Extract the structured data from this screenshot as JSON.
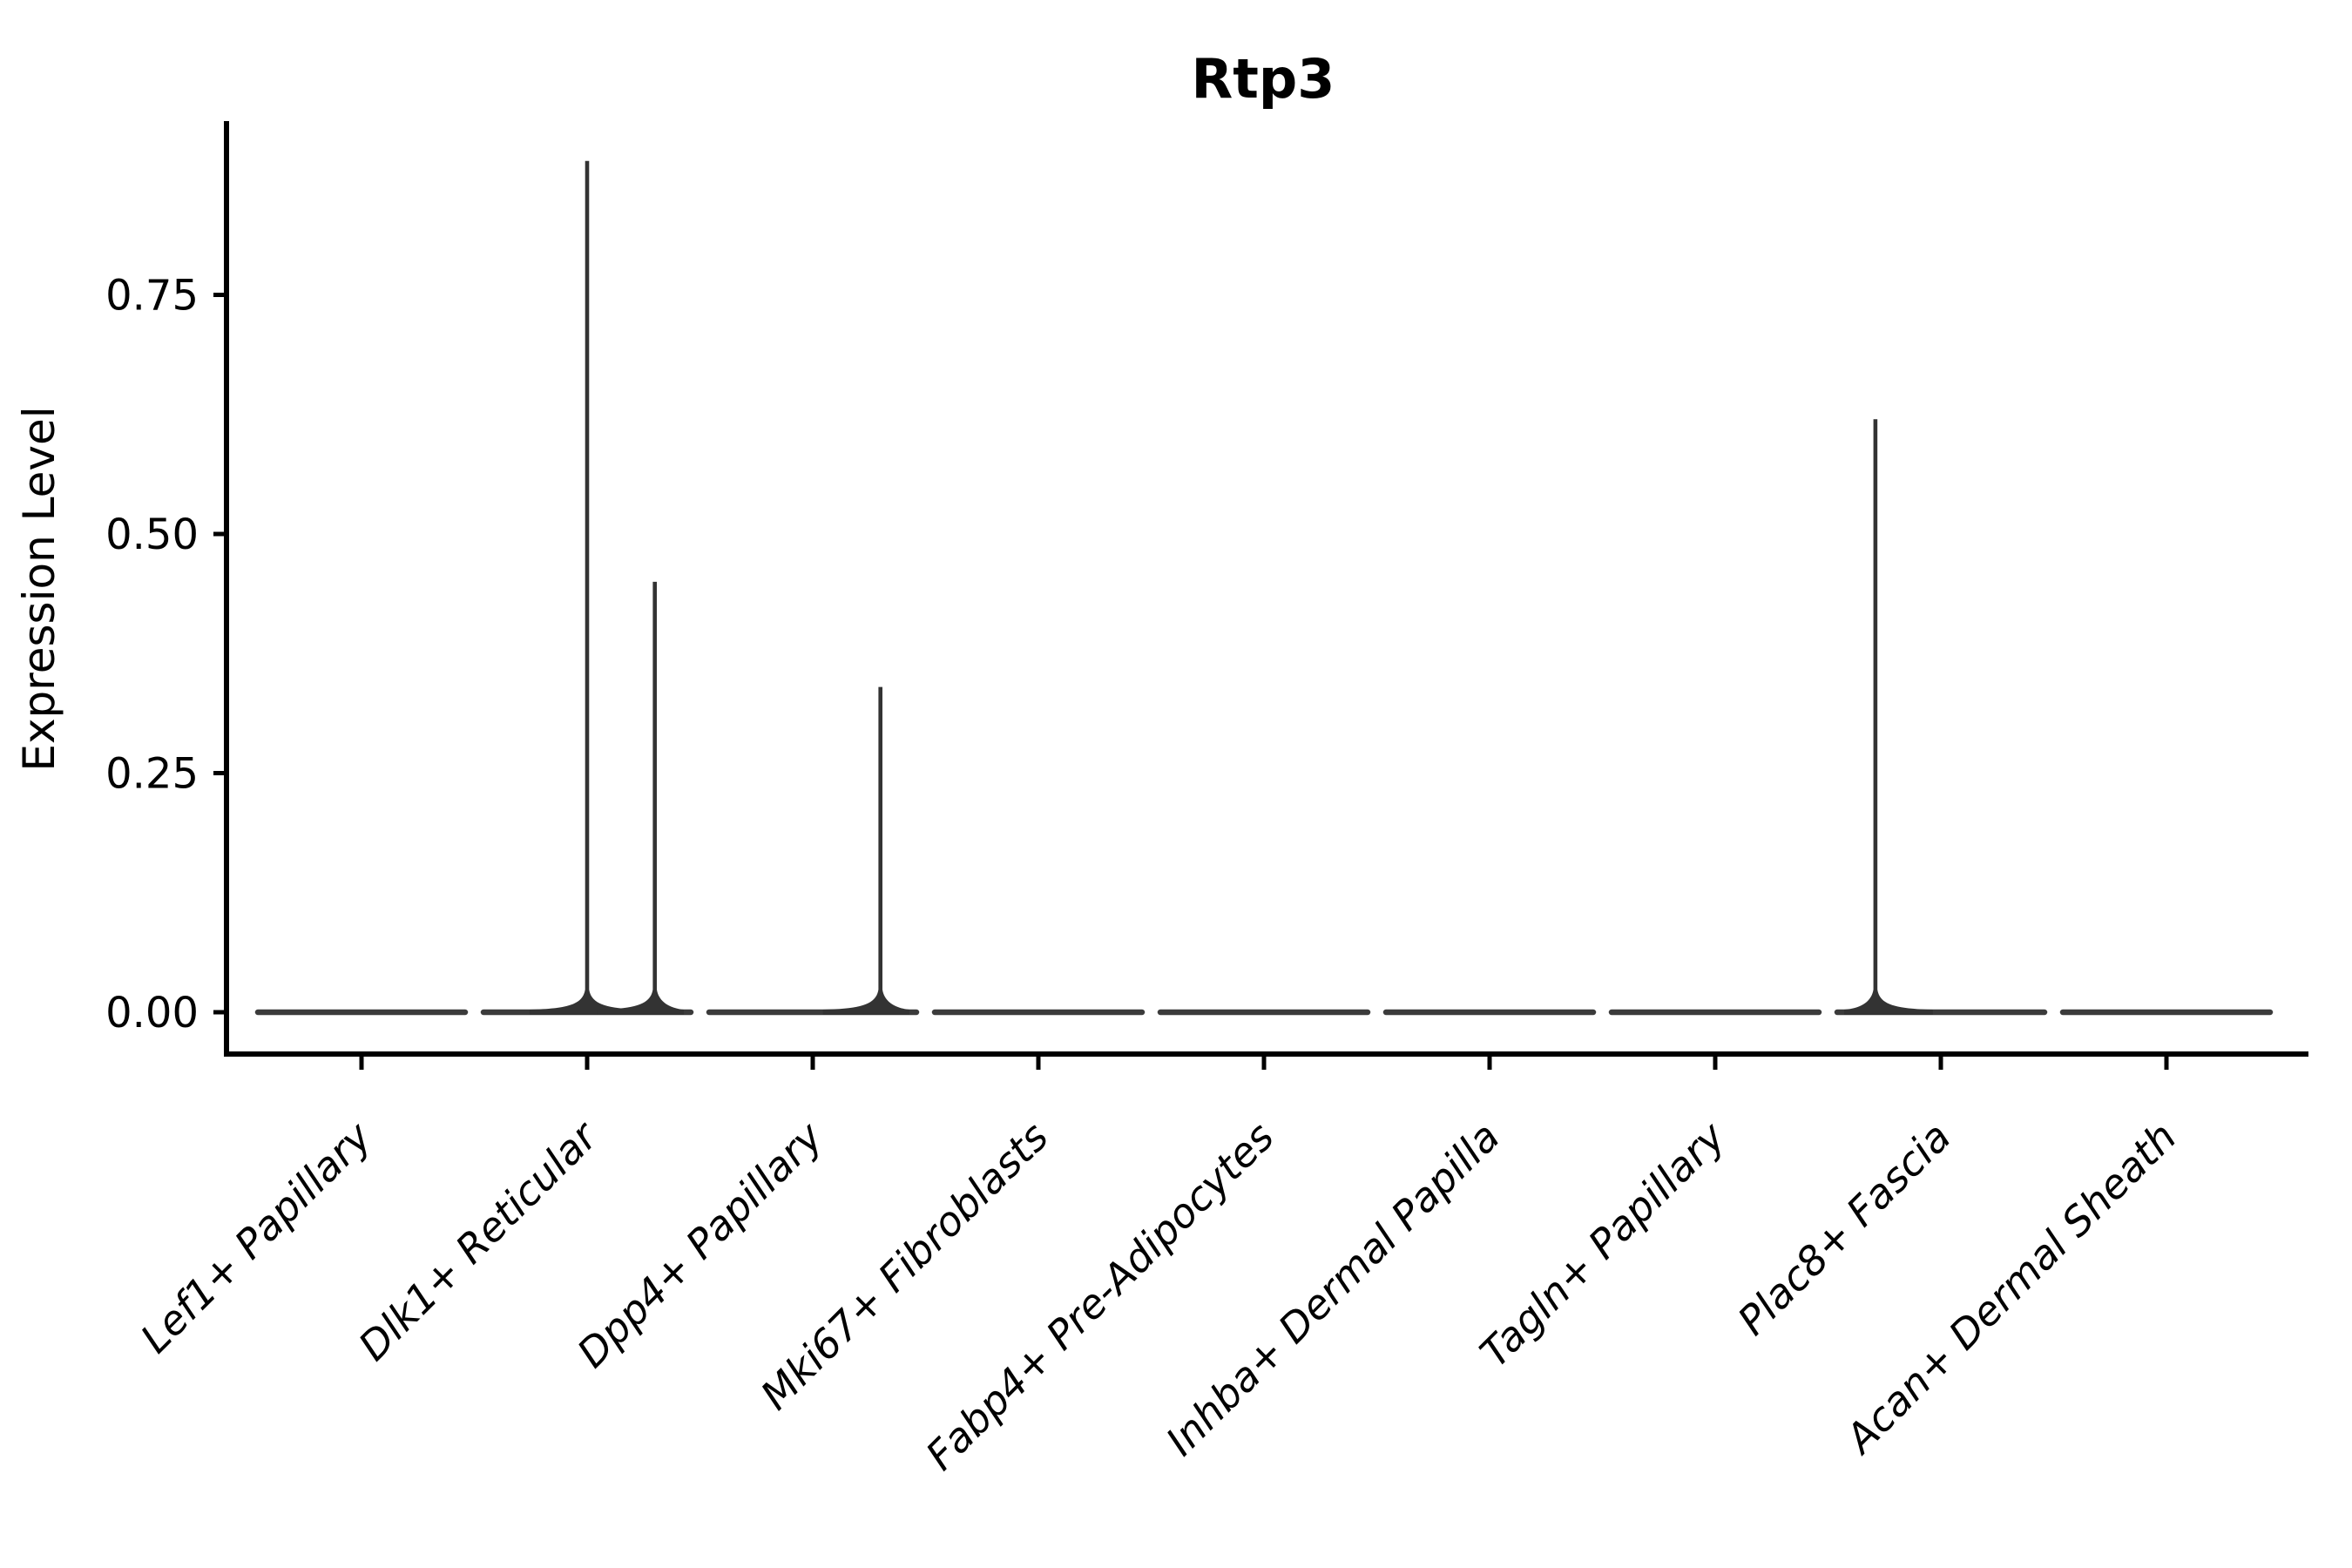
{
  "figure": {
    "background": "#ffffff"
  },
  "chart_data": {
    "type": "violin",
    "title": "Rtp3",
    "xlabel": "",
    "ylabel": "Expression Level",
    "categories": [
      "Lef1+ Papillary",
      "Dlk1+ Reticular",
      "Dpp4+ Papillary",
      "Mki67+ Fibroblasts",
      "Fabp4+ Pre-Adipocytes",
      "Inhba+ Dermal Papilla",
      "Tagln+ Papillary",
      "Plac8+ Fascia",
      "Acan+ Dermal Sheath"
    ],
    "y_tick_labels": [
      "0.00",
      "0.25",
      "0.50",
      "0.75"
    ],
    "y_tick_values": [
      0.0,
      0.25,
      0.5,
      0.75
    ],
    "ylim": [
      -0.04,
      0.93
    ],
    "grid": false,
    "legend": "none",
    "violin_width": 0.92,
    "series": [
      {
        "name": "Lef1+ Papillary",
        "baseline": 0,
        "spikes": []
      },
      {
        "name": "Dlk1+ Reticular",
        "baseline": 0,
        "spikes": [
          {
            "offset": 0.0,
            "value": 0.89
          },
          {
            "offset": 0.3,
            "value": 0.45
          }
        ]
      },
      {
        "name": "Dpp4+ Papillary",
        "baseline": 0,
        "spikes": [
          {
            "offset": 0.3,
            "value": 0.34
          }
        ]
      },
      {
        "name": "Mki67+ Fibroblasts",
        "baseline": 0,
        "spikes": []
      },
      {
        "name": "Fabp4+ Pre-Adipocytes",
        "baseline": 0,
        "spikes": []
      },
      {
        "name": "Inhba+ Dermal Papilla",
        "baseline": 0,
        "spikes": []
      },
      {
        "name": "Tagln+ Papillary",
        "baseline": 0,
        "spikes": []
      },
      {
        "name": "Plac8+ Fascia",
        "baseline": 0,
        "spikes": [
          {
            "offset": -0.29,
            "value": 0.62
          }
        ]
      },
      {
        "name": "Acan+ Dermal Sheath",
        "baseline": 0,
        "spikes": []
      }
    ],
    "colors": {
      "violin_line": "#3b3b3b",
      "spike_line": "#333333",
      "axis": "#000000",
      "text": "#000000"
    }
  }
}
